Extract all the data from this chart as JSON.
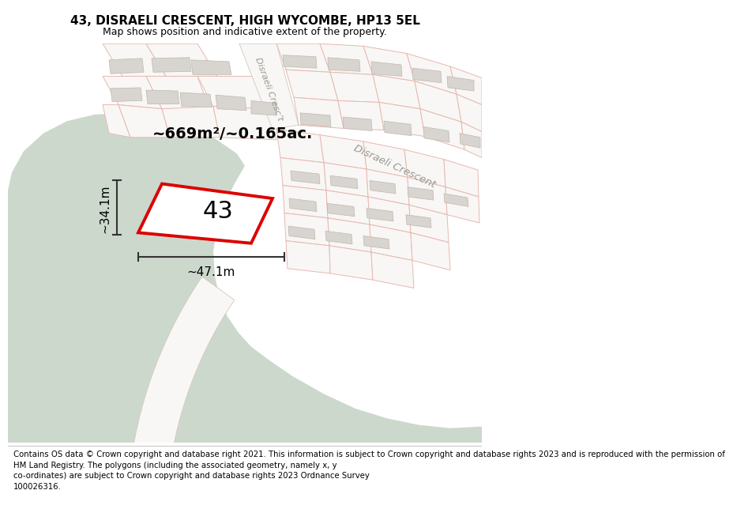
{
  "title": "43, DISRAELI CRESCENT, HIGH WYCOMBE, HP13 5EL",
  "subtitle": "Map shows position and indicative extent of the property.",
  "footer": "Contains OS data © Crown copyright and database right 2021. This information is subject to Crown copyright and database rights 2023 and is reproduced with the permission of\nHM Land Registry. The polygons (including the associated geometry, namely x, y\nco-ordinates) are subject to Crown copyright and database rights 2023 Ordnance Survey\n100026316.",
  "area_label": "~669m²/~0.165ac.",
  "width_label": "~47.1m",
  "height_label": "~34.1m",
  "plot_number": "43",
  "map_bg": "#f0efec",
  "road_fill": "#ffffff",
  "parcel_fill": "#f8f7f5",
  "parcel_stroke": "#e8b8b0",
  "building_fill": "#d8d4d0",
  "building_stroke": "#c0b8b0",
  "green_area": "#cdd8cc",
  "red_line": "#dd0000",
  "dim_line": "#333333",
  "road_label_color": "#999990",
  "crescent_road_fill": "#f5f4f2",
  "crescent_road_stroke": "#d0c8c0",
  "title_fontsize": 11,
  "subtitle_fontsize": 9,
  "footer_fontsize": 7.3,
  "area_label_fontsize": 14,
  "plot_label_fontsize": 22,
  "annotation_fontsize": 11,
  "road_label_sm_fontsize": 8,
  "road_label_fontsize": 9.5
}
